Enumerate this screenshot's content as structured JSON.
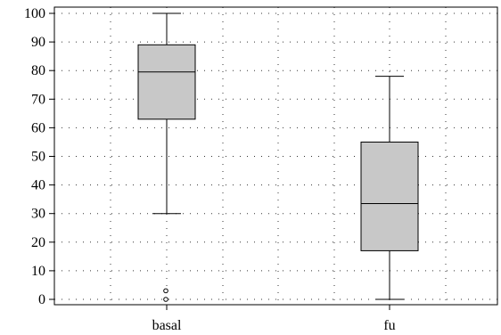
{
  "chart_data": {
    "type": "boxplot",
    "title": "",
    "xlabel": "",
    "ylabel": "",
    "ylim": [
      -2,
      101
    ],
    "yticks": [
      0,
      10,
      20,
      30,
      40,
      50,
      60,
      70,
      80,
      90,
      100
    ],
    "grid": true,
    "categories": [
      "basal",
      "fu"
    ],
    "boxes": [
      {
        "category": "basal",
        "whisker_low": 30,
        "q1": 63,
        "median": 79.5,
        "q3": 89,
        "whisker_high": 100,
        "outliers": [
          3,
          0
        ]
      },
      {
        "category": "fu",
        "whisker_low": 0,
        "q1": 17,
        "median": 33.5,
        "q3": 55,
        "whisker_high": 78,
        "outliers": []
      }
    ],
    "colors": {
      "box_fill": "#c8c8c8",
      "stroke": "#000000",
      "grid": "#333333"
    }
  }
}
